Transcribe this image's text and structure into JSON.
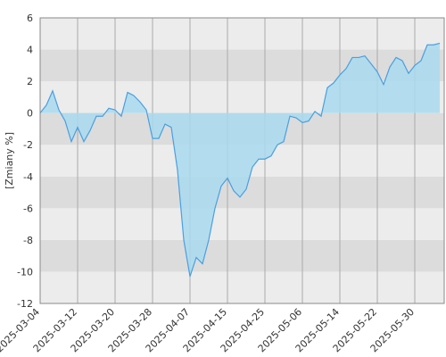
{
  "chart_data": {
    "type": "area",
    "y_label": "[Zmiany %]",
    "categories": [
      "2025-03-04",
      null,
      null,
      null,
      null,
      null,
      "2025-03-12",
      null,
      null,
      null,
      null,
      null,
      "2025-03-20",
      null,
      null,
      null,
      null,
      null,
      "2025-03-28",
      null,
      null,
      null,
      null,
      null,
      "2025-04-07",
      null,
      null,
      null,
      null,
      null,
      "2025-04-15",
      null,
      null,
      null,
      null,
      null,
      "2025-04-25",
      null,
      null,
      null,
      null,
      null,
      "2025-05-06",
      null,
      null,
      null,
      null,
      null,
      "2025-05-14",
      null,
      null,
      null,
      null,
      null,
      "2025-05-22",
      null,
      null,
      null,
      null,
      null,
      "2025-05-30",
      null,
      null,
      null,
      null
    ],
    "series": [
      {
        "color": "#4a9fe0",
        "fill": "#a9daef",
        "values": [
          0,
          0.5,
          1.4,
          0.2,
          -0.5,
          -1.8,
          -0.9,
          -1.8,
          -1.1,
          -0.2,
          -0.2,
          0.3,
          0.2,
          -0.2,
          1.3,
          1.1,
          0.7,
          0.2,
          -1.6,
          -1.6,
          -0.7,
          -0.9,
          -3.6,
          -8.0,
          -10.3,
          -9.1,
          -9.5,
          -8.0,
          -6.0,
          -4.6,
          -4.1,
          -4.9,
          -5.3,
          -4.8,
          -3.4,
          -2.9,
          -2.9,
          -2.7,
          -2.0,
          -1.8,
          -0.2,
          -0.3,
          -0.6,
          -0.5,
          0.1,
          -0.2,
          1.6,
          1.9,
          2.4,
          2.8,
          3.5,
          3.5,
          3.6,
          3.1,
          2.6,
          1.8,
          2.9,
          3.5,
          3.3,
          2.5,
          3.0,
          3.3,
          4.3,
          4.3,
          4.4
        ]
      }
    ],
    "ylim": [
      -12,
      6
    ],
    "yticks": [
      -12,
      -10,
      -8,
      -6,
      -4,
      -2,
      0,
      2,
      4,
      6
    ],
    "grid": true
  }
}
